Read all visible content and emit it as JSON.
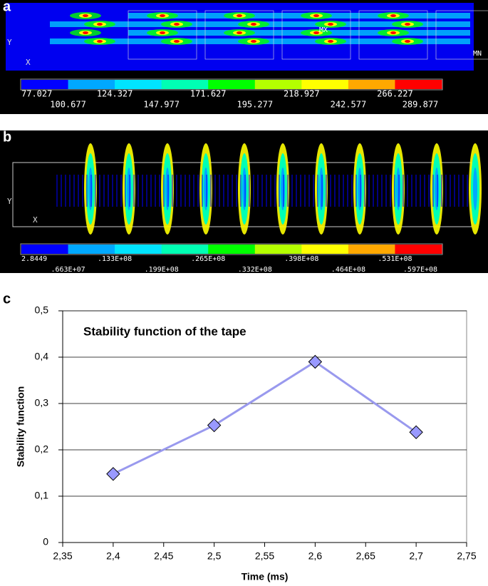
{
  "panels": [
    {
      "label": "a",
      "axis_y": "Y",
      "axis_x": "X",
      "marker_max": "MX",
      "marker_min": "MN",
      "colorbar_labels": [
        "77.027",
        "100.677",
        "124.327",
        "147.977",
        "171.627",
        "195.277",
        "218.927",
        "242.577",
        "266.227",
        "289.877"
      ]
    },
    {
      "label": "b",
      "axis_y": "Y",
      "axis_x": "X",
      "colorbar_labels": [
        "2.8449",
        ".663E+07",
        ".133E+08",
        ".199E+08",
        ".265E+08",
        ".332E+08",
        ".398E+08",
        ".464E+08",
        ".531E+08",
        ".597E+08"
      ]
    }
  ],
  "colorbar_colors": [
    "#0000ff",
    "#00a8ff",
    "#00e4ff",
    "#00ffb4",
    "#00ff00",
    "#b4ff00",
    "#ffff00",
    "#ffa800",
    "#ff0000"
  ],
  "chart_data": {
    "type": "line",
    "panel_label": "c",
    "annotation": "Stability function of the tape",
    "xlabel": "Time (ms)",
    "ylabel": "Stability function",
    "x": [
      2.4,
      2.5,
      2.6,
      2.7
    ],
    "values": [
      0.148,
      0.253,
      0.39,
      0.238
    ],
    "color": "#9999ee",
    "marker_color": "#9999ff",
    "xlim": [
      2.35,
      2.75
    ],
    "ylim": [
      0,
      0.5
    ],
    "xticks": [
      {
        "value": 2.35,
        "label": "2,35"
      },
      {
        "value": 2.4,
        "label": "2,4"
      },
      {
        "value": 2.45,
        "label": "2,45"
      },
      {
        "value": 2.5,
        "label": "2,5"
      },
      {
        "value": 2.55,
        "label": "2,55"
      },
      {
        "value": 2.6,
        "label": "2,6"
      },
      {
        "value": 2.65,
        "label": "2,65"
      },
      {
        "value": 2.7,
        "label": "2,7"
      },
      {
        "value": 2.75,
        "label": "2,75"
      }
    ],
    "yticks": [
      0,
      {
        "value": 0.1,
        "label": "0,1"
      },
      {
        "value": 0.2,
        "label": "0,2"
      },
      {
        "value": 0.3,
        "label": "0,3"
      },
      {
        "value": 0.4,
        "label": "0,4"
      },
      {
        "value": 0.5,
        "label": "0,5"
      }
    ],
    "grid": true
  }
}
